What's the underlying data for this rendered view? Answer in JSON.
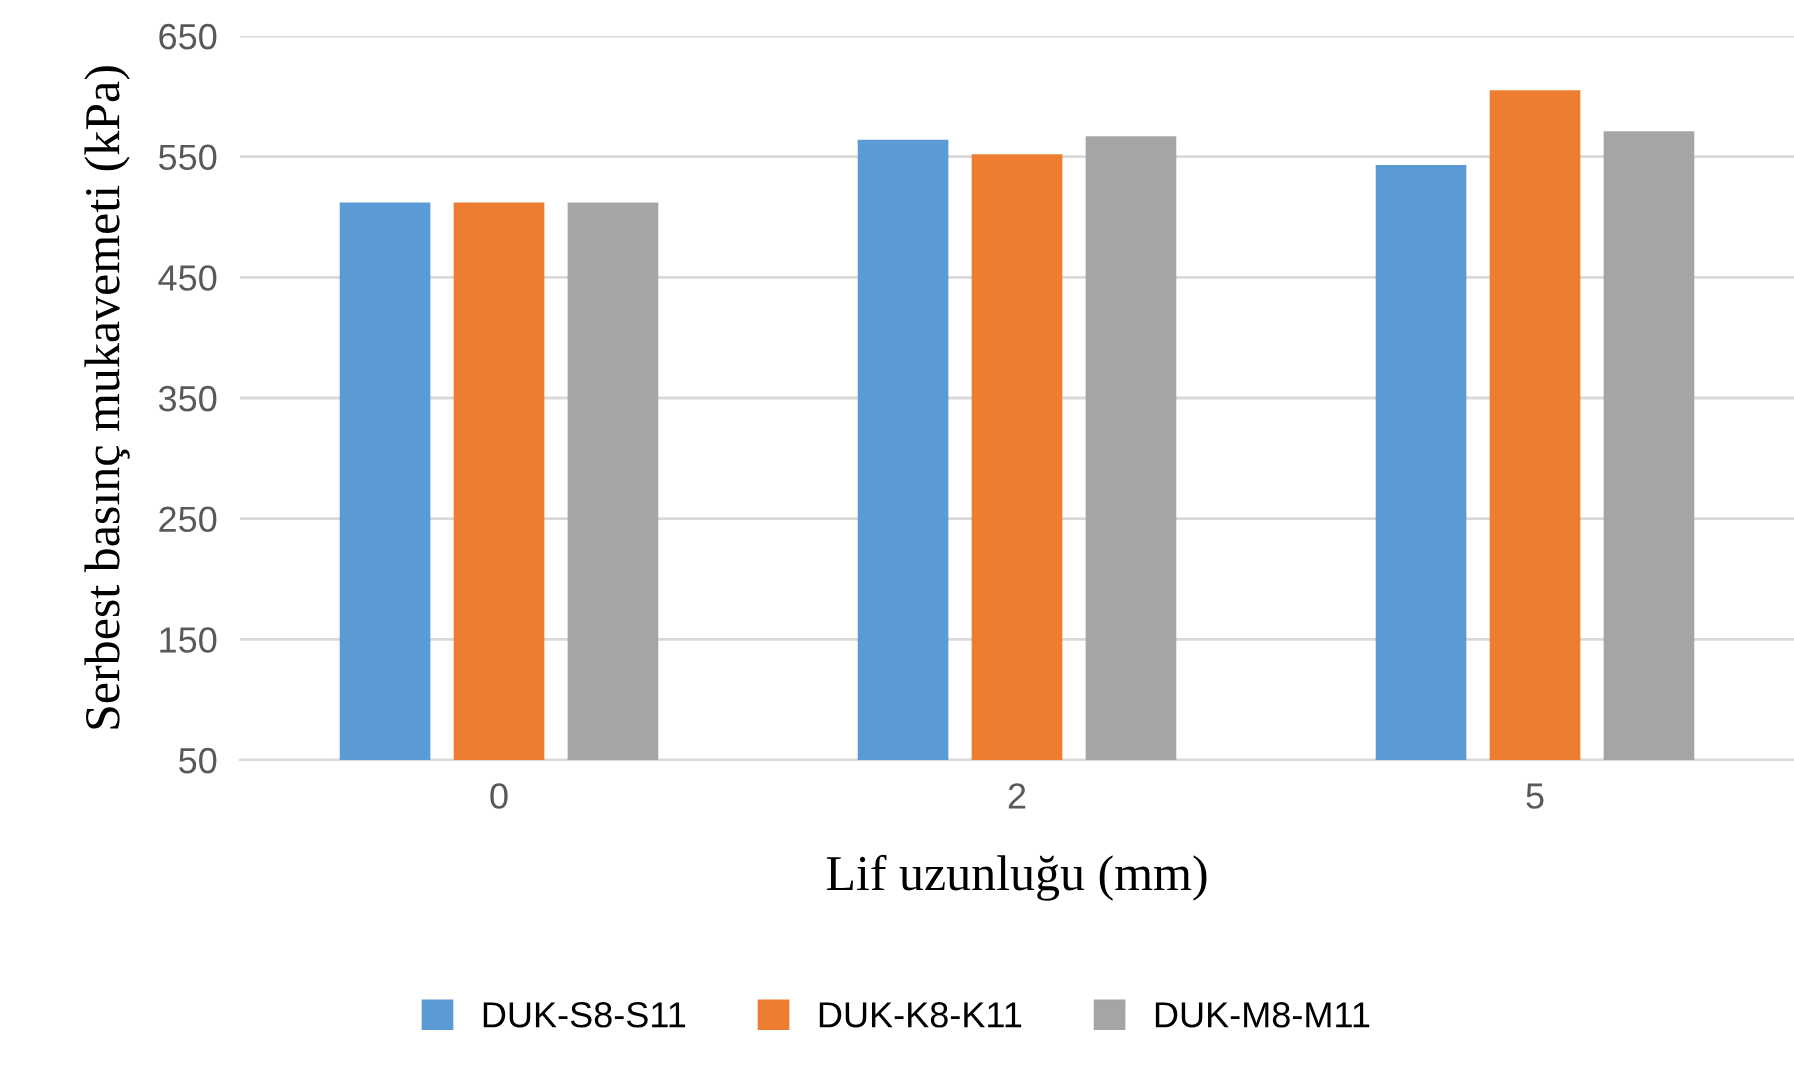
{
  "chart_data": {
    "type": "bar",
    "xlabel": "Lif uzunluğu (mm)",
    "ylabel": "Serbest basınç mukavemeti (kPa)",
    "categories": [
      "0",
      "2",
      "5"
    ],
    "series": [
      {
        "name": "DUK-S8-S11",
        "color": "#5b9bd5",
        "values": [
          512,
          564,
          543
        ]
      },
      {
        "name": "DUK-K8-K11",
        "color": "#ed7d31",
        "values": [
          512,
          552,
          605
        ]
      },
      {
        "name": "DUK-M8-M11",
        "color": "#a5a5a5",
        "values": [
          512,
          567,
          571
        ]
      }
    ],
    "ylim": [
      50,
      650
    ],
    "yticks": [
      50,
      150,
      250,
      350,
      450,
      550,
      650
    ],
    "grid": "y",
    "legend": "bottom"
  }
}
